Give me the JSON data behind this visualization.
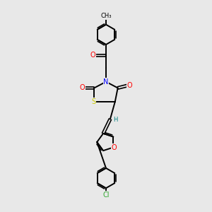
{
  "background_color": "#e8e8e8",
  "bond_color": "#000000",
  "N_color": "#0000ff",
  "O_color": "#ff0000",
  "S_color": "#cccc00",
  "Cl_color": "#33aa33",
  "H_color": "#008080",
  "figsize": [
    3.0,
    3.0
  ],
  "dpi": 100,
  "xlim": [
    2.5,
    7.5
  ],
  "ylim": [
    0.5,
    15.5
  ]
}
